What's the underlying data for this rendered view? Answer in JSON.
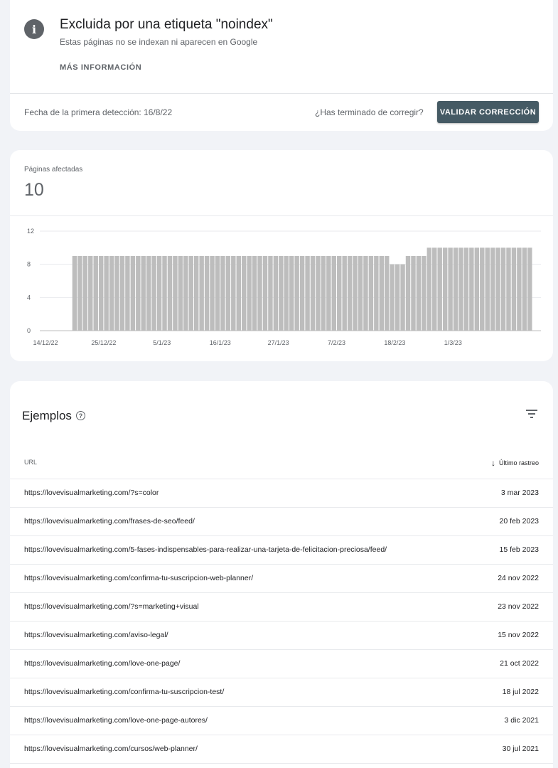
{
  "issue": {
    "icon": "info-icon",
    "title": "Excluida por una etiqueta \"noindex\"",
    "subtitle": "Estas páginas no se indexan ni aparecen en Google",
    "more_info": "MÁS INFORMACIÓN",
    "first_detection": "Fecha de la primera detección: 16/8/22",
    "finished_question": "¿Has terminado de corregir?",
    "validate_button": "VALIDAR CORRECCIÓN",
    "button_color": "#455a64"
  },
  "metric": {
    "label": "Páginas afectadas",
    "value": "10"
  },
  "chart_data": {
    "type": "bar",
    "title": "",
    "xlabel": "",
    "ylabel": "",
    "ylim": [
      0,
      12
    ],
    "yticks": [
      0,
      4,
      8,
      12
    ],
    "grid": true,
    "bar_color": "#bdbdbd",
    "xtick_labels": [
      "14/12/22",
      "25/12/22",
      "5/1/23",
      "16/1/23",
      "27/1/23",
      "7/2/23",
      "18/2/23",
      "1/3/23"
    ],
    "xtick_bar_index": [
      0,
      11,
      22,
      33,
      44,
      55,
      66,
      77
    ],
    "values": [
      0,
      0,
      0,
      0,
      0,
      9,
      9,
      9,
      9,
      9,
      9,
      9,
      9,
      9,
      9,
      9,
      9,
      9,
      9,
      9,
      9,
      9,
      9,
      9,
      9,
      9,
      9,
      9,
      9,
      9,
      9,
      9,
      9,
      9,
      9,
      9,
      9,
      9,
      9,
      9,
      9,
      9,
      9,
      9,
      9,
      9,
      9,
      9,
      9,
      9,
      9,
      9,
      9,
      9,
      9,
      9,
      9,
      9,
      9,
      9,
      9,
      9,
      9,
      9,
      9,
      8,
      8,
      8,
      9,
      9,
      9,
      9,
      10,
      10,
      10,
      10,
      10,
      10,
      10,
      10,
      10,
      10,
      10,
      10,
      10,
      10,
      10,
      10,
      10,
      10,
      10,
      10
    ]
  },
  "examples": {
    "title": "Ejemplos",
    "help_icon": "help-circle-icon",
    "filter_icon": "filter-icon",
    "columns": {
      "url": "URL",
      "last_crawl": "Último rastreo"
    },
    "rows": [
      {
        "url": "https://lovevisualmarketing.com/?s=color",
        "date": "3 mar 2023"
      },
      {
        "url": "https://lovevisualmarketing.com/frases-de-seo/feed/",
        "date": "20 feb 2023"
      },
      {
        "url": "https://lovevisualmarketing.com/5-fases-indispensables-para-realizar-una-tarjeta-de-felicitacion-preciosa/feed/",
        "date": "15 feb 2023"
      },
      {
        "url": "https://lovevisualmarketing.com/confirma-tu-suscripcion-web-planner/",
        "date": "24 nov 2022"
      },
      {
        "url": "https://lovevisualmarketing.com/?s=marketing+visual",
        "date": "23 nov 2022"
      },
      {
        "url": "https://lovevisualmarketing.com/aviso-legal/",
        "date": "15 nov 2022"
      },
      {
        "url": "https://lovevisualmarketing.com/love-one-page/",
        "date": "21 oct 2022"
      },
      {
        "url": "https://lovevisualmarketing.com/confirma-tu-suscripcion-test/",
        "date": "18 jul 2022"
      },
      {
        "url": "https://lovevisualmarketing.com/love-one-page-autores/",
        "date": "3 dic 2021"
      },
      {
        "url": "https://lovevisualmarketing.com/cursos/web-planner/",
        "date": "30 jul 2021"
      }
    ]
  }
}
